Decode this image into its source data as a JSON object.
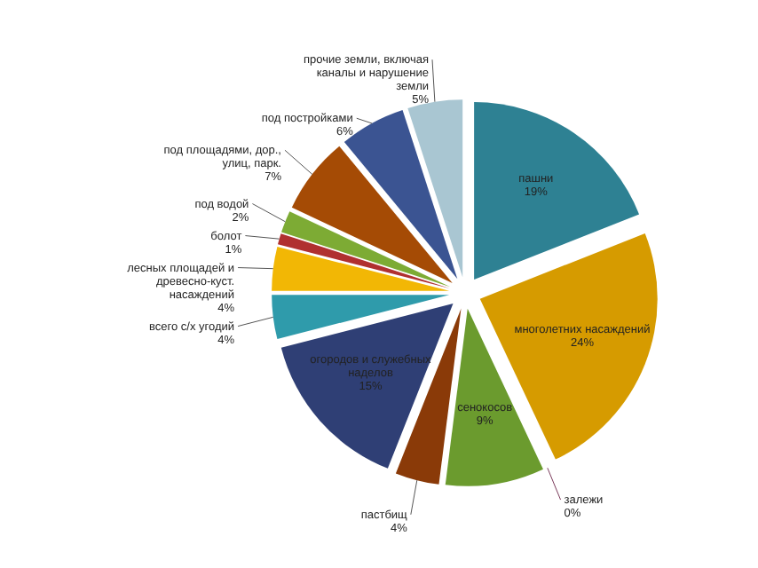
{
  "chart_data": {
    "type": "pie",
    "categories": [
      "пашни",
      "многолетних насаждений",
      "залежи",
      "сенокосов",
      "пастбищ",
      "огородов и служебных наделов",
      "всего с/х угодий",
      "лесных площадей и древесно-куст. насаждений",
      "болот",
      "под водой",
      "под площадями, дор., улиц, парк.",
      "под постройками",
      "прочие земли, включая каналы и нарушение земли"
    ],
    "values": [
      19,
      24,
      0,
      9,
      4,
      15,
      4,
      4,
      1,
      2,
      7,
      6,
      5
    ],
    "colors": [
      "#2e8193",
      "#d69b00",
      "#7a3a5a",
      "#6b9b2e",
      "#8a3a08",
      "#2f3f75",
      "#2f9bab",
      "#f2b705",
      "#b03030",
      "#7dab34",
      "#a54b05",
      "#3b5492",
      "#a9c6d2"
    ],
    "value_labels": [
      "19%",
      "24%",
      "0%",
      "9%",
      "4%",
      "15%",
      "4%",
      "4%",
      "1%",
      "2%",
      "7%",
      "6%",
      "5%"
    ],
    "legend": false
  }
}
